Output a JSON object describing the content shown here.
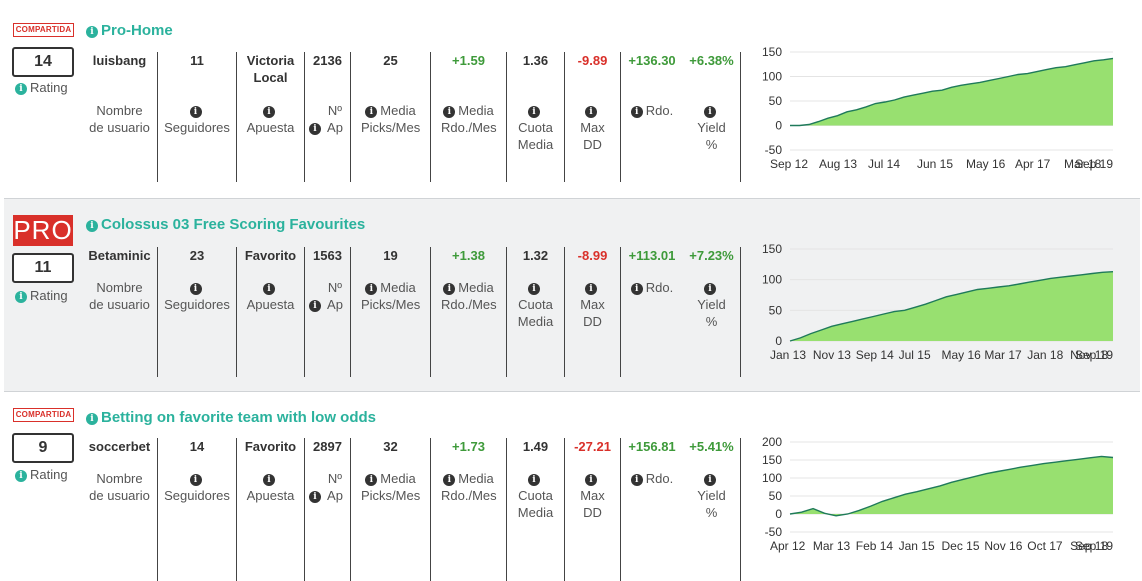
{
  "colors": {
    "accent": "#2bb29d",
    "positive": "#3e9a3a",
    "negative": "#d9302a",
    "chart_fill": "#98e070",
    "chart_line": "#1f7a5a"
  },
  "icons": {
    "info": "info-circle-icon"
  },
  "cards": [
    {
      "badge": "COMPARTIDA",
      "title": "Pro-Home",
      "rating": "14",
      "rating_label": "Rating",
      "values": {
        "user": "luisbang",
        "followers": "11",
        "bet": "Victoria Local",
        "num_bets": "2136",
        "picks": "25",
        "media_rdo": "+1.59",
        "cuota": "1.36",
        "maxdd": "-9.89",
        "rdo": "+136.30",
        "yield": "+6.38%"
      },
      "labels": {
        "user": "Nombre de usuario",
        "followers": "Seguidores",
        "bet": "Apuesta",
        "num_bets": "Nº Ap",
        "picks": "Media Picks/Mes",
        "media_rdo": "Media Rdo./Mes",
        "cuota": "Cuota Media",
        "maxdd": "Max DD",
        "rdo": "Rdo.",
        "yield": "Yield %"
      },
      "chart_data": {
        "type": "area",
        "y_ticks": [
          "150",
          "100",
          "50",
          "0",
          "-50"
        ],
        "x_ticks": [
          "Sep 12",
          "Aug 13",
          "Jul 14",
          "Jun 15",
          "May 16",
          "Apr 17",
          "Mar 18",
          "Sep 19"
        ],
        "ylim": [
          -50,
          150
        ],
        "values": [
          0,
          0,
          2,
          8,
          15,
          20,
          28,
          32,
          38,
          45,
          48,
          52,
          58,
          62,
          66,
          70,
          72,
          78,
          82,
          85,
          88,
          92,
          96,
          100,
          104,
          106,
          110,
          114,
          118,
          120,
          124,
          128,
          132,
          134,
          137
        ]
      }
    },
    {
      "badge": "PRO",
      "title": "Colossus 03 Free Scoring Favourites",
      "rating": "11",
      "rating_label": "Rating",
      "values": {
        "user": "Betaminic",
        "followers": "23",
        "bet": "Favorito",
        "num_bets": "1563",
        "picks": "19",
        "media_rdo": "+1.38",
        "cuota": "1.32",
        "maxdd": "-8.99",
        "rdo": "+113.01",
        "yield": "+7.23%"
      },
      "labels": {
        "user": "Nombre de usuario",
        "followers": "Seguidores",
        "bet": "Apuesta",
        "num_bets": "Nº Ap",
        "picks": "Media Picks/Mes",
        "media_rdo": "Media Rdo./Mes",
        "cuota": "Cuota Media",
        "maxdd": "Max DD",
        "rdo": "Rdo.",
        "yield": "Yield %"
      },
      "chart_data": {
        "type": "area",
        "y_ticks": [
          "150",
          "100",
          "50",
          "0"
        ],
        "x_ticks": [
          "Jan 13",
          "Nov 13",
          "Sep 14",
          "Jul 15",
          "May 16",
          "Mar 17",
          "Jan 18",
          "Nov 18",
          "Sep 19"
        ],
        "ylim": [
          0,
          150
        ],
        "values": [
          0,
          5,
          12,
          18,
          24,
          28,
          32,
          36,
          40,
          44,
          48,
          50,
          55,
          60,
          66,
          72,
          76,
          80,
          84,
          86,
          88,
          90,
          93,
          96,
          99,
          102,
          104,
          106,
          108,
          110,
          112,
          113
        ]
      }
    },
    {
      "badge": "COMPARTIDA",
      "title": "Betting on favorite team with low odds",
      "rating": "9",
      "rating_label": "Rating",
      "values": {
        "user": "soccerbet",
        "followers": "14",
        "bet": "Favorito",
        "num_bets": "2897",
        "picks": "32",
        "media_rdo": "+1.73",
        "cuota": "1.49",
        "maxdd": "-27.21",
        "rdo": "+156.81",
        "yield": "+5.41%"
      },
      "labels": {
        "user": "Nombre de usuario",
        "followers": "Seguidores",
        "bet": "Apuesta",
        "num_bets": "Nº Ap",
        "picks": "Media Picks/Mes",
        "media_rdo": "Media Rdo./Mes",
        "cuota": "Cuota Media",
        "maxdd": "Max DD",
        "rdo": "Rdo.",
        "yield": "Yield %"
      },
      "chart_data": {
        "type": "area",
        "y_ticks": [
          "200",
          "150",
          "100",
          "50",
          "0",
          "-50"
        ],
        "x_ticks": [
          "Apr 12",
          "Mar 13",
          "Feb 14",
          "Jan 15",
          "Dec 15",
          "Nov 16",
          "Oct 17",
          "Sep 18",
          "Sep 19"
        ],
        "ylim": [
          -50,
          200
        ],
        "values": [
          0,
          5,
          15,
          2,
          -5,
          0,
          10,
          22,
          35,
          45,
          55,
          62,
          70,
          78,
          88,
          96,
          104,
          112,
          118,
          124,
          130,
          135,
          140,
          144,
          148,
          152,
          156,
          160,
          157
        ]
      }
    }
  ]
}
